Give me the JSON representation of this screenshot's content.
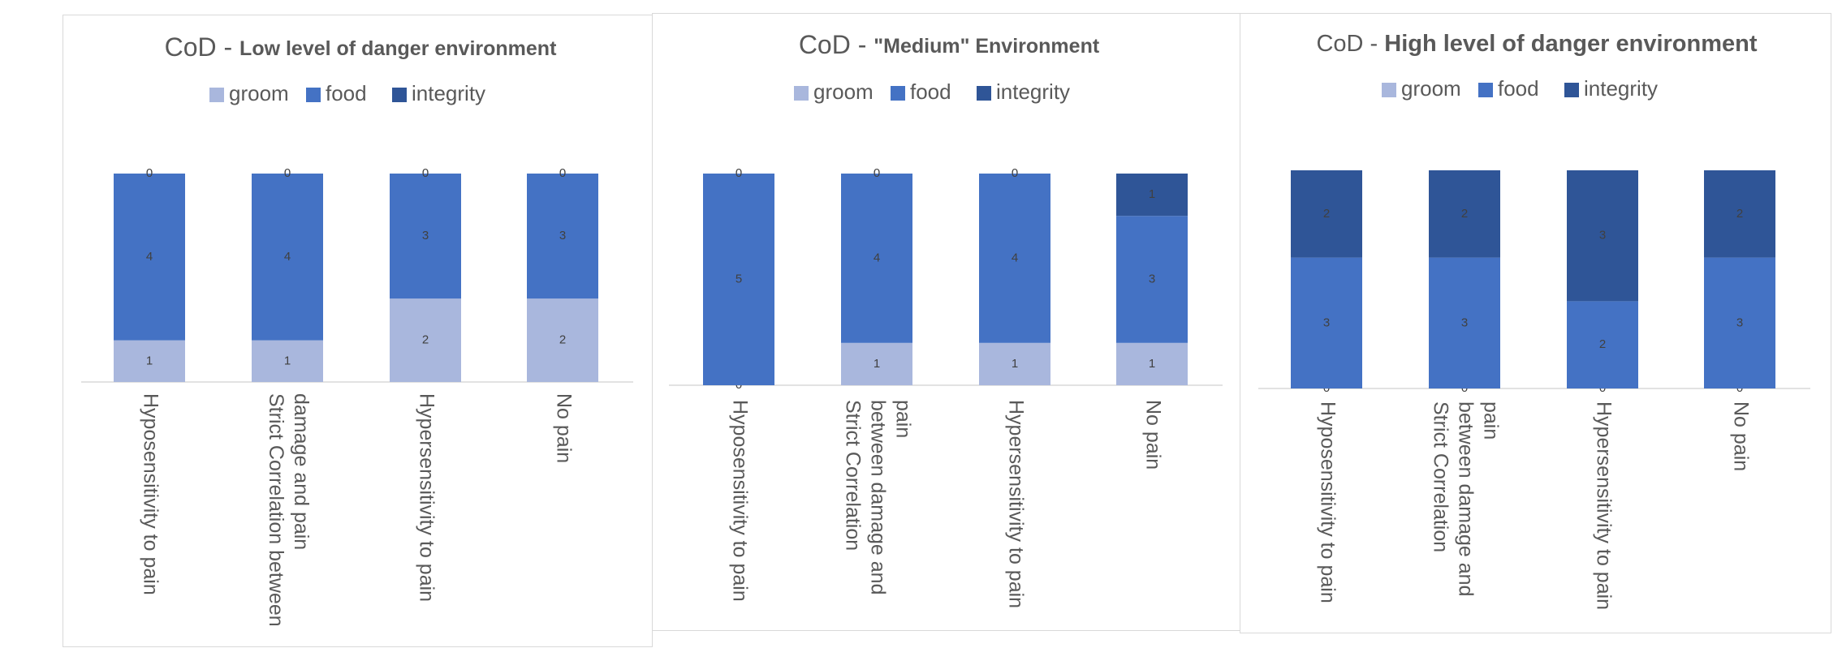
{
  "colors": {
    "groom": "#a9b7dd",
    "food": "#4472c4",
    "integrity": "#2f5597"
  },
  "chart_data": [
    {
      "type": "bar",
      "stacked": true,
      "title": "CoD - Low level of danger environment",
      "title_main": "CoD - ",
      "title_sub": "Low level of danger environment",
      "legend": [
        "groom",
        "food",
        "integrity"
      ],
      "legend_position": "top",
      "categories": [
        "Hyposensitivity to pain",
        "Strict Correlation between damage and pain",
        "Hypersensitivity to pain",
        "No pain"
      ],
      "category_lines": [
        [
          "Hyposensitivity to pain"
        ],
        [
          "Strict Correlation between",
          "damage and pain"
        ],
        [
          "Hypersensitivity to pain"
        ],
        [
          "No pain"
        ]
      ],
      "series": [
        {
          "name": "groom",
          "values": [
            1,
            1,
            2,
            2
          ]
        },
        {
          "name": "food",
          "values": [
            4,
            4,
            3,
            3
          ]
        },
        {
          "name": "integrity",
          "values": [
            0,
            0,
            0,
            0
          ]
        }
      ],
      "ylim": [
        0,
        5
      ],
      "grid": false
    },
    {
      "type": "bar",
      "stacked": true,
      "title": "CoD - \"Medium\" Environment",
      "title_main": "CoD - ",
      "title_sub": "\"Medium\" Environment",
      "legend": [
        "groom",
        "food",
        "integrity"
      ],
      "legend_position": "top",
      "categories": [
        "Hyposensitivity to pain",
        "Strict Correlation between damage and pain",
        "Hypersensitivity to pain",
        "No pain"
      ],
      "category_lines": [
        [
          "Hyposensitivity to pain"
        ],
        [
          "Strict Correlation",
          "between damage and",
          "pain"
        ],
        [
          "Hypersensitivity to pain"
        ],
        [
          "No pain"
        ]
      ],
      "series": [
        {
          "name": "groom",
          "values": [
            0,
            1,
            1,
            1
          ]
        },
        {
          "name": "food",
          "values": [
            5,
            4,
            4,
            3
          ]
        },
        {
          "name": "integrity",
          "values": [
            0,
            0,
            0,
            1
          ]
        }
      ],
      "ylim": [
        0,
        5
      ],
      "grid": false
    },
    {
      "type": "bar",
      "stacked": true,
      "title": "CoD - High level of danger environment",
      "title_main": "CoD - ",
      "title_sub": "High level of danger environment",
      "legend": [
        "groom",
        "food",
        "integrity"
      ],
      "legend_position": "top",
      "categories": [
        "Hyposensitivity to pain",
        "Strict Correlation between damage and pain",
        "Hypersensitivity to pain",
        "No pain"
      ],
      "category_lines": [
        [
          "Hyposensitivity to pain"
        ],
        [
          "Strict Correlation",
          "between damage and",
          "pain"
        ],
        [
          "Hypersensitivity to pain"
        ],
        [
          "No pain"
        ]
      ],
      "series": [
        {
          "name": "groom",
          "values": [
            0,
            0,
            0,
            0
          ]
        },
        {
          "name": "food",
          "values": [
            3,
            3,
            2,
            3
          ]
        },
        {
          "name": "integrity",
          "values": [
            2,
            2,
            3,
            2
          ]
        }
      ],
      "ylim": [
        0,
        5
      ],
      "grid": false
    }
  ]
}
